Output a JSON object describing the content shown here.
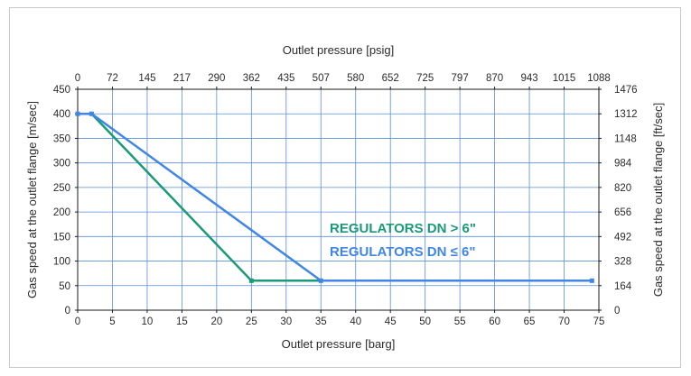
{
  "chart_data": {
    "type": "line",
    "x_bottom_label": "Outlet pressure [barg]",
    "x_top_label": "Outlet pressure [psig]",
    "y_left_label": "Gas speed at the outlet flange [m/sec]",
    "y_right_label": "Gas speed at the outlet flange [ft/sec]",
    "x_ticks": [
      "0",
      "5",
      "10",
      "15",
      "20",
      "25",
      "30",
      "35",
      "40",
      "45",
      "50",
      "55",
      "60",
      "65",
      "70",
      "75"
    ],
    "x_top_ticks": [
      "0",
      "72",
      "145",
      "217",
      "290",
      "362",
      "435",
      "507",
      "580",
      "652",
      "725",
      "797",
      "870",
      "943",
      "1015",
      "1088"
    ],
    "y_ticks": [
      "0",
      "50",
      "100",
      "150",
      "200",
      "250",
      "300",
      "350",
      "400",
      "450"
    ],
    "y_right_ticks": [
      "0",
      "164",
      "328",
      "492",
      "656",
      "820",
      "984",
      "1148",
      "1312",
      "1476"
    ],
    "xlim": [
      0,
      75
    ],
    "ylim": [
      0,
      450
    ],
    "grid": true,
    "series": [
      {
        "name": "REGULATORS DN > 6\"",
        "color": "#1a9a78",
        "x": [
          0,
          2,
          25,
          35,
          74
        ],
        "y": [
          400,
          400,
          60,
          60,
          60
        ]
      },
      {
        "name": "REGULATORS DN ≤ 6\"",
        "color": "#3f86e6",
        "x": [
          0,
          2,
          35,
          74
        ],
        "y": [
          400,
          400,
          60,
          60
        ]
      }
    ],
    "marker_points": [
      {
        "series": 1,
        "x": 0,
        "y": 400
      },
      {
        "series": 1,
        "x": 2,
        "y": 400
      },
      {
        "series": 0,
        "x": 25,
        "y": 60
      },
      {
        "series": 1,
        "x": 35,
        "y": 60
      },
      {
        "series": 1,
        "x": 74,
        "y": 60
      }
    ]
  }
}
